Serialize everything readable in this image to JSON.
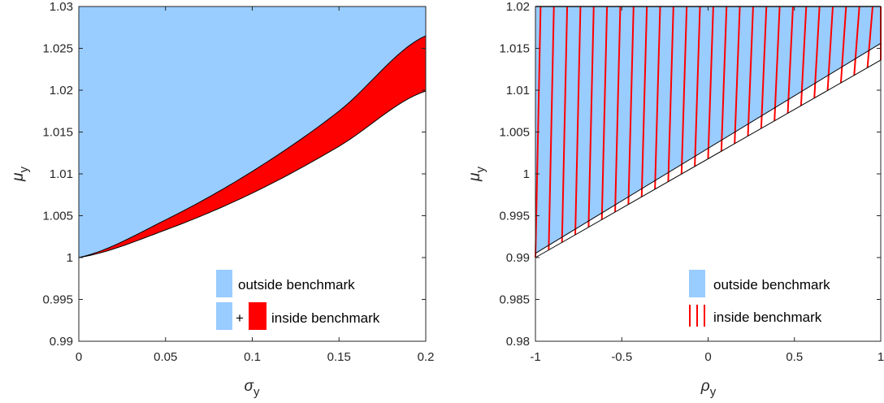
{
  "colors": {
    "outside": "#99ccff",
    "inside": "#ff0000",
    "axis": "#262626"
  },
  "chart_data": [
    {
      "type": "area",
      "xlabel": "σ",
      "xlabel_sub": "y",
      "ylabel": "μ",
      "ylabel_sub": "y",
      "xlim": [
        0,
        0.2
      ],
      "ylim": [
        0.99,
        1.03
      ],
      "xticks": [
        "0",
        "0.05",
        "0.1",
        "0.15",
        "0.2"
      ],
      "yticks": [
        "0.99",
        "0.995",
        "1",
        "1.005",
        "1.01",
        "1.015",
        "1.02",
        "1.025",
        "1.03"
      ],
      "grid": false,
      "legend_position": "bottom-right",
      "series": [
        {
          "name": "outside benchmark",
          "x": [
            0,
            0.05,
            0.1,
            0.15,
            0.2
          ],
          "lower": [
            1.0,
            1.0045,
            1.0103,
            1.0175,
            1.0265
          ],
          "upper": [
            1.03,
            1.03,
            1.03,
            1.03,
            1.03
          ]
        },
        {
          "name": "inside benchmark",
          "x": [
            0,
            0.05,
            0.1,
            0.15,
            0.2
          ],
          "lower": [
            1.0,
            1.0033,
            1.0077,
            1.0133,
            1.0199
          ],
          "upper": [
            1.0,
            1.0045,
            1.0103,
            1.0175,
            1.0265
          ]
        }
      ],
      "legend": [
        {
          "label": "outside benchmark"
        },
        {
          "label": "inside benchmark",
          "prefix": "+"
        }
      ]
    },
    {
      "type": "area",
      "xlabel": "ρ",
      "xlabel_sub": "y",
      "ylabel": "μ",
      "ylabel_sub": "y",
      "xlim": [
        -1,
        1
      ],
      "ylim": [
        0.98,
        1.02
      ],
      "xticks": [
        "-1",
        "-0.5",
        "0",
        "0.5",
        "1"
      ],
      "yticks": [
        "0.98",
        "0.985",
        "0.99",
        "0.995",
        "1",
        "1.005",
        "1.01",
        "1.015",
        "1.02"
      ],
      "grid": false,
      "legend_position": "bottom-right",
      "series": [
        {
          "name": "outside benchmark",
          "x": [
            -1,
            1
          ],
          "lower": [
            0.9905,
            1.0156
          ],
          "upper": [
            1.02,
            1.02
          ]
        },
        {
          "name": "inside benchmark",
          "x": [
            -1,
            1
          ],
          "lower": [
            0.99,
            1.0136
          ],
          "upper": [
            1.02,
            1.02
          ],
          "hatch_count": 26
        }
      ],
      "legend": [
        {
          "label": "outside benchmark"
        },
        {
          "label": "inside benchmark"
        }
      ]
    }
  ]
}
